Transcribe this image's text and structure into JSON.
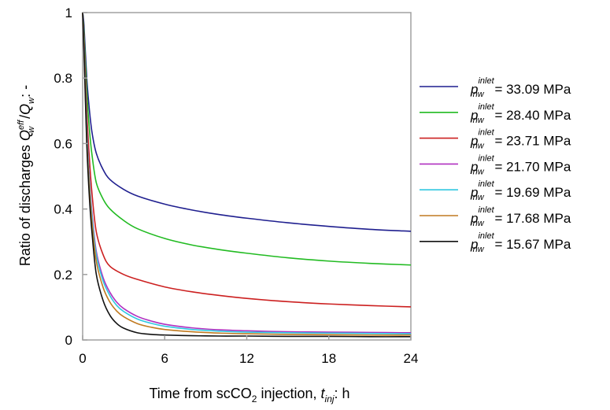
{
  "chart_data": {
    "type": "line",
    "xlabel": {
      "pre": "Time from scCO",
      "sub": "2",
      "post": " injection, ",
      "ital": "t",
      "ital_sub": "inj",
      "tail": ": h"
    },
    "ylabel": {
      "pre": "Ratio of discharges ",
      "q1": "Q",
      "q1_sub": "w",
      "q1_sup": "eff",
      "mid": " /",
      "q2": "Q",
      "q2_sub": "w",
      "tail": ": -"
    },
    "xlim": [
      0,
      24
    ],
    "ylim": [
      0,
      1
    ],
    "xticks": [
      "0",
      "6",
      "12",
      "18",
      "24"
    ],
    "yticks": [
      "0",
      "0.2",
      "0.4",
      "0.6",
      "0.8",
      "1"
    ],
    "legend_position": "right",
    "legend_symbol": {
      "p": "p",
      "sub": "nw",
      "sup": "inlet"
    },
    "series": [
      {
        "name": "33.09 MPa",
        "color": "#1f1f8f",
        "x": [
          0,
          0.1,
          0.3,
          0.5,
          0.7,
          1,
          1.5,
          2,
          3,
          4,
          6,
          8,
          10,
          12,
          15,
          18,
          21,
          24
        ],
        "y": [
          1,
          0.96,
          0.8,
          0.7,
          0.63,
          0.57,
          0.52,
          0.49,
          0.46,
          0.44,
          0.415,
          0.397,
          0.383,
          0.372,
          0.358,
          0.347,
          0.338,
          0.332
        ]
      },
      {
        "name": "28.40 MPa",
        "color": "#22bb22",
        "x": [
          0,
          0.1,
          0.3,
          0.5,
          0.7,
          1,
          1.5,
          2,
          3,
          4,
          6,
          8,
          10,
          12,
          15,
          18,
          21,
          24
        ],
        "y": [
          1,
          0.94,
          0.76,
          0.64,
          0.56,
          0.48,
          0.43,
          0.4,
          0.365,
          0.34,
          0.31,
          0.29,
          0.276,
          0.265,
          0.251,
          0.241,
          0.234,
          0.229
        ]
      },
      {
        "name": "23.71 MPa",
        "color": "#cc2020",
        "x": [
          0,
          0.1,
          0.3,
          0.5,
          0.7,
          1,
          1.5,
          2,
          3,
          4,
          6,
          8,
          10,
          12,
          15,
          18,
          21,
          24
        ],
        "y": [
          1,
          0.92,
          0.7,
          0.55,
          0.44,
          0.33,
          0.26,
          0.225,
          0.2,
          0.185,
          0.162,
          0.147,
          0.136,
          0.127,
          0.117,
          0.11,
          0.105,
          0.101
        ]
      },
      {
        "name": "21.70 MPa",
        "color": "#b030c0",
        "x": [
          0,
          0.1,
          0.3,
          0.5,
          0.7,
          1,
          1.5,
          2,
          2.5,
          3,
          4,
          5,
          6,
          8,
          10,
          12,
          15,
          18,
          21,
          24
        ],
        "y": [
          1,
          0.9,
          0.65,
          0.49,
          0.38,
          0.27,
          0.19,
          0.145,
          0.115,
          0.096,
          0.072,
          0.058,
          0.048,
          0.037,
          0.031,
          0.028,
          0.025,
          0.024,
          0.023,
          0.022
        ]
      },
      {
        "name": "19.69 MPa",
        "color": "#30c8e0",
        "x": [
          0,
          0.1,
          0.3,
          0.5,
          0.7,
          1,
          1.5,
          2,
          2.5,
          3,
          4,
          5,
          6,
          8,
          10,
          12,
          15,
          18,
          21,
          24
        ],
        "y": [
          1,
          0.9,
          0.64,
          0.48,
          0.37,
          0.26,
          0.18,
          0.135,
          0.105,
          0.087,
          0.064,
          0.051,
          0.042,
          0.032,
          0.027,
          0.024,
          0.022,
          0.021,
          0.02,
          0.019
        ]
      },
      {
        "name": "17.68 MPa",
        "color": "#c07a20",
        "x": [
          0,
          0.1,
          0.3,
          0.5,
          0.7,
          1,
          1.5,
          2,
          2.5,
          3,
          4,
          5,
          6,
          8,
          10,
          12,
          15,
          18,
          21,
          24
        ],
        "y": [
          1,
          0.89,
          0.62,
          0.46,
          0.35,
          0.24,
          0.16,
          0.115,
          0.088,
          0.071,
          0.05,
          0.039,
          0.032,
          0.025,
          0.021,
          0.019,
          0.017,
          0.016,
          0.015,
          0.015
        ]
      },
      {
        "name": "15.67 MPa",
        "color": "#111111",
        "x": [
          0,
          0.1,
          0.3,
          0.5,
          0.7,
          1,
          1.5,
          2,
          2.5,
          3,
          4,
          5,
          6,
          8,
          10,
          12,
          15,
          18,
          21,
          24
        ],
        "y": [
          1,
          0.88,
          0.6,
          0.43,
          0.32,
          0.2,
          0.12,
          0.075,
          0.05,
          0.036,
          0.022,
          0.017,
          0.015,
          0.013,
          0.012,
          0.012,
          0.011,
          0.011,
          0.01,
          0.01
        ]
      }
    ]
  }
}
